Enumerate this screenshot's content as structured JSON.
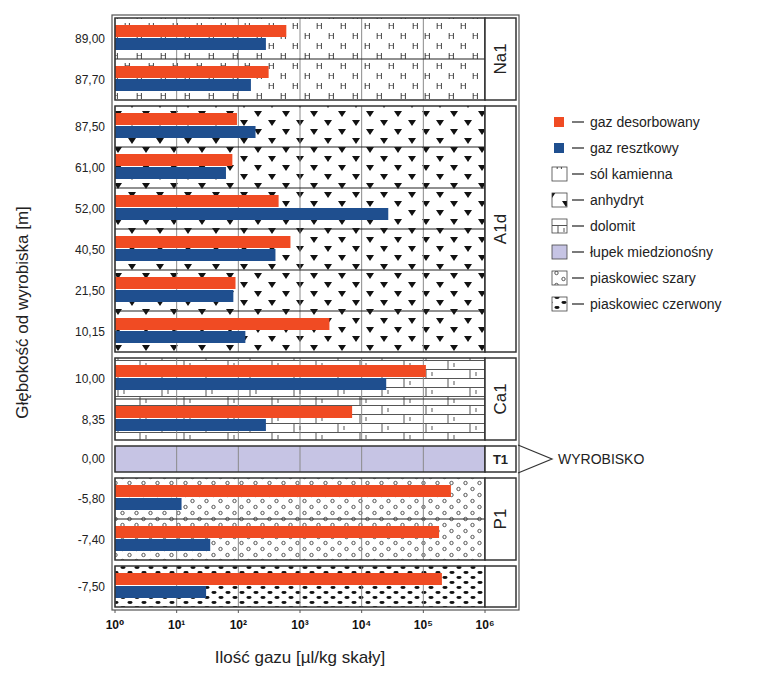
{
  "chart_data": {
    "type": "bar",
    "orientation": "horizontal",
    "log": "x",
    "grid": true,
    "legend": "right",
    "x_label": "Ilość gazu [µl/kg skały]",
    "y_label": "Głębokość od wyrobiska [m]",
    "categories": [
      "89,00",
      "87,70",
      "87,50",
      "61,00",
      "52,00",
      "40,50",
      "21,50",
      "10,15",
      "10,00",
      "8,35",
      "0,00",
      "-5,80",
      "-7,40",
      "-7,50"
    ],
    "units": [
      "Na1",
      "Na1",
      "A1d",
      "A1d",
      "A1d",
      "A1d",
      "A1d",
      "A1d",
      "Ca1",
      "Ca1",
      "T1",
      "P1",
      "P1",
      null
    ],
    "lithology": [
      "sól kamienna",
      "sól kamienna",
      "anhydryt",
      "anhydryt",
      "anhydryt",
      "anhydryt",
      "anhydryt",
      "anhydryt",
      "dolomit",
      "dolomit",
      "łupek miedzionośny",
      "piaskowiec szary",
      "piaskowiec szary",
      "piaskowiec czerwony"
    ],
    "lithologies": [
      "sól kamienna",
      "anhydryt",
      "dolomit",
      "łupek miedzionośny",
      "piaskowiec szary",
      "piaskowiec czerwony"
    ],
    "series": [
      {
        "name": "gaz desorbowany",
        "color": "#f04b23",
        "values": [
          600,
          310,
          95,
          80,
          450,
          700,
          90,
          3000,
          110000,
          7000,
          null,
          280000,
          180000,
          200000
        ]
      },
      {
        "name": "gaz resztkowy",
        "color": "#1f4f8f",
        "values": [
          280,
          160,
          190,
          63,
          27000,
          400,
          83,
          130,
          25000,
          280,
          null,
          12,
          35,
          30
        ]
      }
    ],
    "xlim": [
      1,
      1000000
    ],
    "xticks": [
      {
        "value": 1,
        "label": "10⁰"
      },
      {
        "value": 10,
        "label": "10¹"
      },
      {
        "value": 100,
        "label": "10²"
      },
      {
        "value": 1000,
        "label": "10³"
      },
      {
        "value": 10000,
        "label": "10⁴"
      },
      {
        "value": 100000,
        "label": "10⁵"
      },
      {
        "value": 1000000,
        "label": "10⁶"
      }
    ],
    "annotations": [
      {
        "text": "WYROBISKO",
        "unit": "T1"
      }
    ]
  }
}
